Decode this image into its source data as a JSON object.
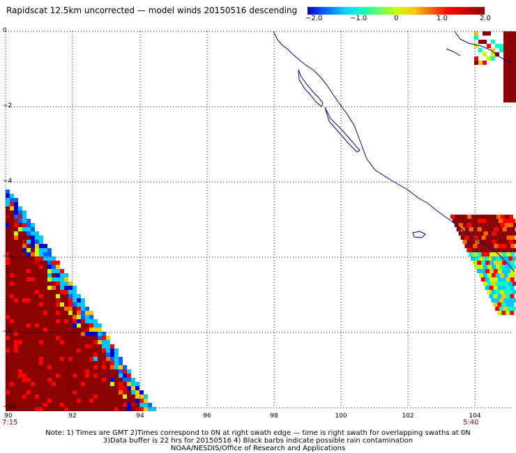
{
  "title": "Rapidscat 12.5km uncorrected — model winds 20150516 descending",
  "colorbar": {
    "labels": [
      "−2.0",
      "−1.0",
      "0",
      "1.0",
      "2.0"
    ],
    "colors": [
      "#0000c8",
      "#0064ff",
      "#00c8ff",
      "#00ffc8",
      "#64ff64",
      "#c8ff00",
      "#ffc800",
      "#ff6400",
      "#ff0000",
      "#c80000",
      "#8b0000"
    ]
  },
  "y_axis": {
    "labels": [
      "0",
      "−2",
      "−4",
      "−6",
      "−8",
      "−10"
    ]
  },
  "x_axis": {
    "labels": [
      "90",
      "92",
      "94",
      "96",
      "98",
      "100",
      "102",
      "104"
    ]
  },
  "times": {
    "left": "7:15",
    "right": "5:40"
  },
  "notes": {
    "line1": "Note: 1) Times are GMT 2)Times correspond to 0N at right swath edge — time is right swath for overlapping swaths at 0N",
    "line2": "3)Data buffer is 22 hrs for 20150516 4) Black barbs indicate possible rain contamination",
    "line3": "NOAA/NESDIS/Office of Research and Applications"
  },
  "map_style": {
    "grid_color": "#000000",
    "coast_color": "#000080"
  }
}
